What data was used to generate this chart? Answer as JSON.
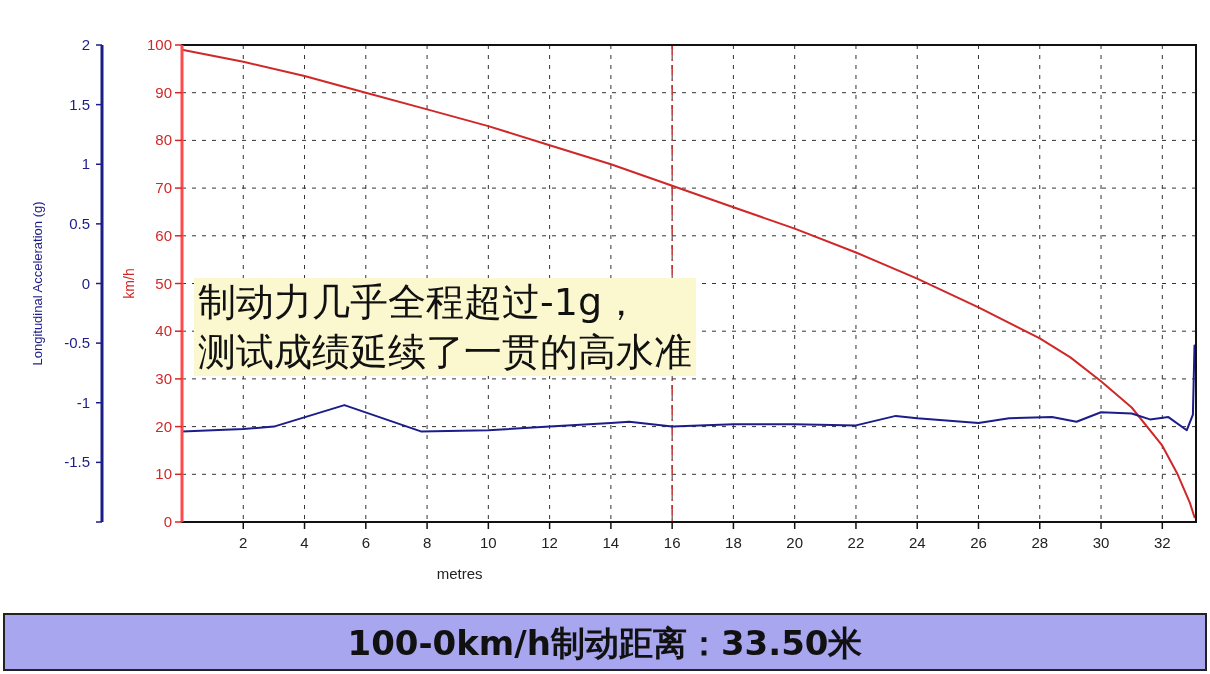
{
  "chart_data": {
    "type": "line",
    "xlabel": "metres",
    "ylabel": "km/h",
    "y2label": "Longitudinal Acceleration (g)",
    "xlim": [
      0,
      33.1
    ],
    "xticks": [
      2,
      4,
      6,
      8,
      10,
      12,
      14,
      16,
      18,
      20,
      22,
      24,
      26,
      28,
      30,
      32
    ],
    "ylim": [
      0,
      100
    ],
    "yticks": [
      0,
      10,
      20,
      30,
      40,
      50,
      60,
      70,
      80,
      90,
      100
    ],
    "y2lim": [
      -2,
      2
    ],
    "y2ticks": [
      {
        "value": -2,
        "label": null
      },
      -1.5,
      -1,
      -0.5,
      0,
      0.5,
      1,
      1.5,
      2
    ],
    "grid": true,
    "marker": "none",
    "series": [
      {
        "color": "#d02828",
        "x": [
          0,
          2,
          4,
          6,
          8,
          10,
          12,
          14,
          16,
          18,
          20,
          22,
          24,
          26,
          28,
          29,
          30,
          31,
          32,
          32.5,
          32.9,
          33.05
        ],
        "values": [
          99,
          96.5,
          93.5,
          90,
          86.5,
          83,
          79,
          75,
          70.5,
          66,
          61.5,
          56.5,
          51,
          45,
          38.5,
          34.5,
          29.5,
          24,
          16,
          10,
          4,
          1
        ]
      },
      {
        "color": "#1c1c8a",
        "axis": "y2",
        "x": [
          0,
          2,
          3,
          5.3,
          7.8,
          10,
          12,
          14,
          14.6,
          16,
          18,
          20,
          22,
          23.3,
          24,
          26,
          27,
          28.4,
          29.2,
          30,
          31,
          31.6,
          32.2,
          32.8,
          33,
          33.05
        ],
        "values": [
          -1.24,
          -1.22,
          -1.2,
          -1.02,
          -1.24,
          -1.23,
          -1.2,
          -1.17,
          -1.16,
          -1.2,
          -1.18,
          -1.18,
          -1.19,
          -1.11,
          -1.13,
          -1.17,
          -1.13,
          -1.12,
          -1.16,
          -1.08,
          -1.09,
          -1.14,
          -1.12,
          -1.23,
          -1.1,
          -0.52
        ]
      }
    ],
    "ref_lines": [
      {
        "axis": "x",
        "value": 16,
        "color": "#c03030",
        "line_style": "dashdot"
      }
    ],
    "annotations": [
      "制动力几乎全程超过-1g，",
      "测试成绩延续了一贯的高水准",
      "100-0km/h制动距离：33.50米"
    ]
  }
}
